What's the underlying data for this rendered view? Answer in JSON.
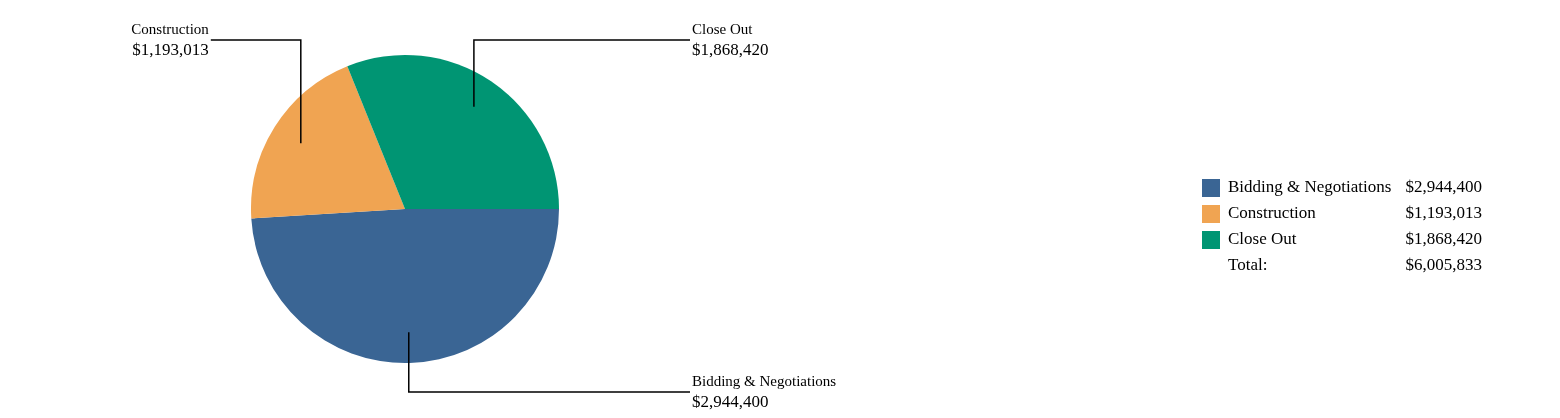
{
  "chart_data": {
    "type": "pie",
    "categories": [
      "Bidding & Negotiations",
      "Construction",
      "Close Out"
    ],
    "values": [
      2944400,
      1193013,
      1868420
    ],
    "colors": [
      "#3a6594",
      "#f0a452",
      "#009573"
    ],
    "value_labels": [
      "$2,944,400",
      "$1,193,013",
      "$1,868,420"
    ],
    "legend": "right",
    "annotations": [
      "Total:",
      "$6,005,833"
    ]
  }
}
